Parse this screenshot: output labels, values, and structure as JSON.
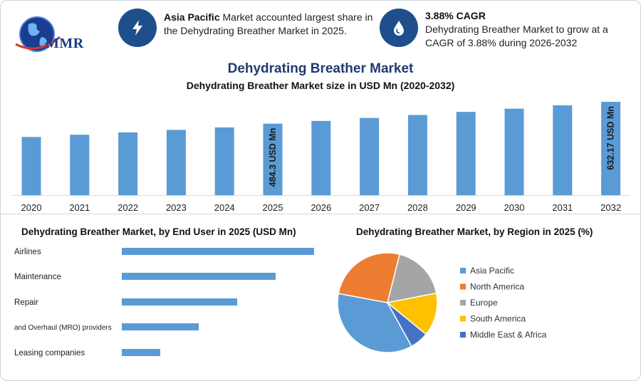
{
  "logo": {
    "text": "MMR"
  },
  "info1": {
    "highlight": "Asia Pacific",
    "text": " Market accounted largest share in the Dehydrating Breather Market in 2025.",
    "icon": "lightning-icon"
  },
  "info2": {
    "title": "3.88% CAGR",
    "text": "Dehydrating Breather Market to grow at a CAGR of 3.88% during 2026-2032",
    "icon": "water-drop-icon"
  },
  "main_title": "Dehydrating Breather Market",
  "colors": {
    "bar": "#5b9bd5",
    "icon_circle": "#1f4e8c",
    "title": "#1f3b6e"
  },
  "chart_data": [
    {
      "type": "bar",
      "title": "Dehydrating Breather Market size in USD Mn (2020-2032)",
      "categories": [
        "2020",
        "2021",
        "2022",
        "2023",
        "2024",
        "2025",
        "2026",
        "2027",
        "2028",
        "2029",
        "2030",
        "2031",
        "2032"
      ],
      "values": [
        394,
        409,
        425,
        442,
        459,
        484.3,
        503,
        523,
        543,
        564,
        586,
        609,
        632.17
      ],
      "data_labels": {
        "2025": "484.3 USD Mn",
        "2032": "632.17 USD Mn"
      },
      "ylim": [
        0,
        650
      ]
    },
    {
      "type": "bar",
      "orientation": "horizontal",
      "title": "Dehydrating Breather Market, by End User in 2025 (USD Mn)",
      "categories": [
        "Airlines",
        "Maintenance",
        "Repair",
        "and Overhaul (MRO) providers",
        "Leasing companies"
      ],
      "values": [
        150,
        120,
        90,
        60,
        30
      ],
      "xlim": [
        0,
        150
      ]
    },
    {
      "type": "pie",
      "title": "Dehydrating Breather Market, by Region in 2025 (%)",
      "labels": [
        "Asia Pacific",
        "North America",
        "Europe",
        "South America",
        "Middle East & Africa"
      ],
      "values": [
        36,
        26,
        18,
        14,
        6
      ],
      "colors": [
        "#5b9bd5",
        "#ed7d31",
        "#a5a5a5",
        "#ffc000",
        "#4472c4"
      ],
      "legend_position": "right"
    }
  ]
}
